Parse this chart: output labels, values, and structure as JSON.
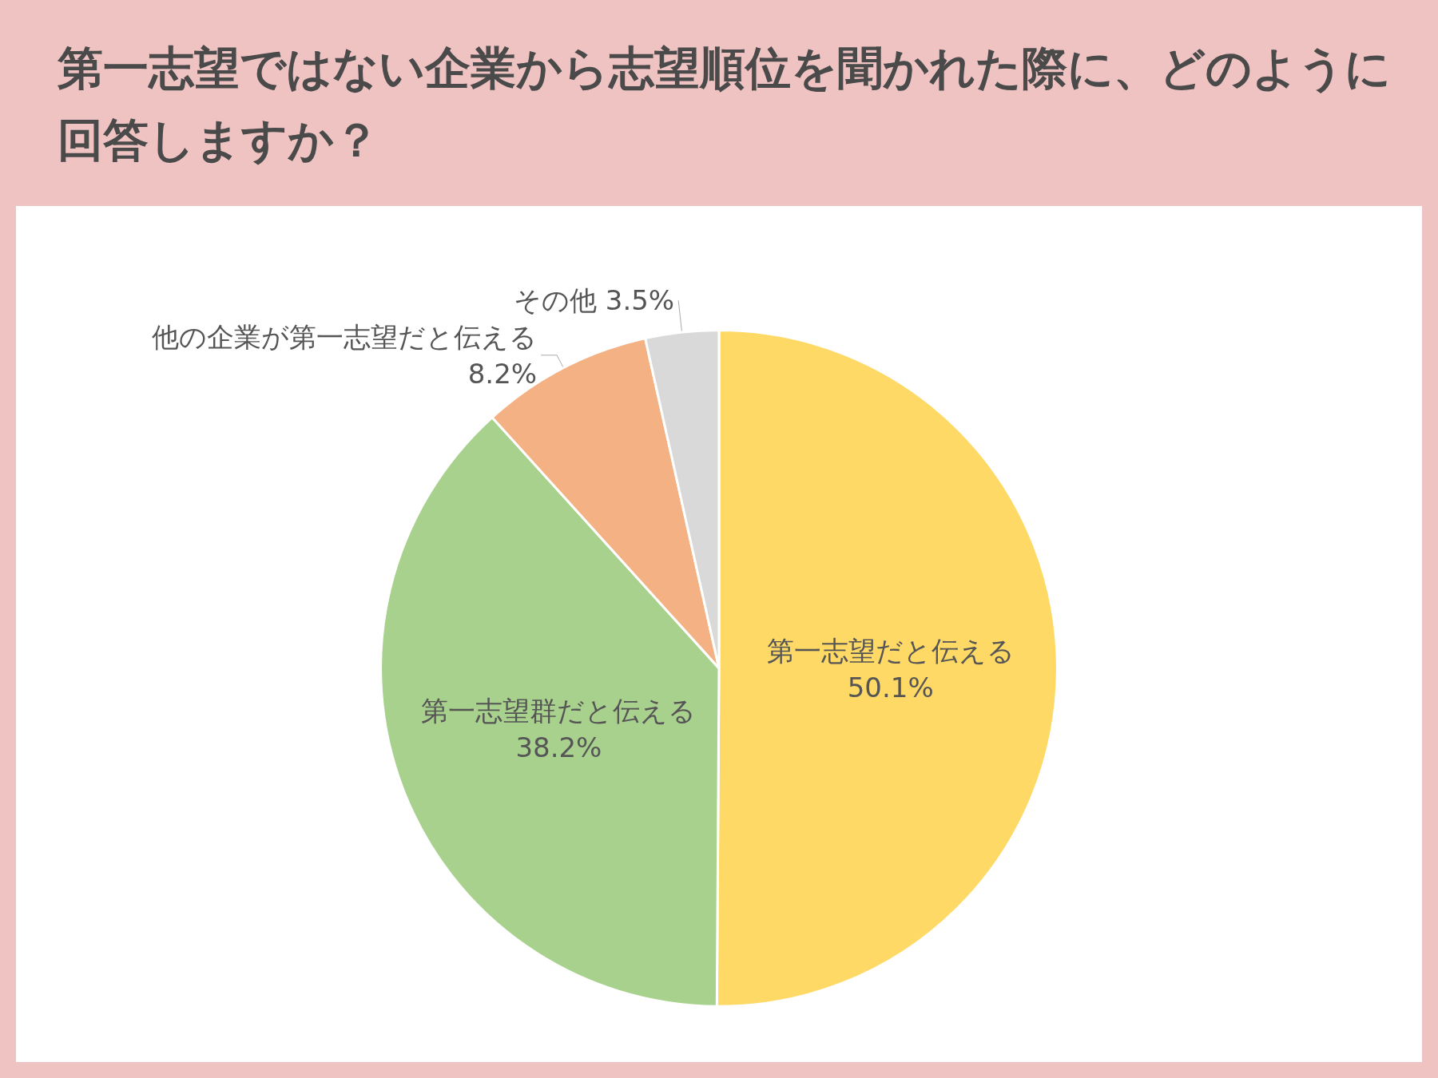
{
  "chart_data": {
    "type": "pie",
    "title": "第一志望ではない企業から志望順位を聞かれた際に、どのように回答しますか？",
    "categories": [
      "第一志望だと伝える",
      "第一志望群だと伝える",
      "他の企業が第一志望だと伝える",
      "その他"
    ],
    "values": [
      50.1,
      38.2,
      8.2,
      3.5
    ],
    "value_labels": [
      "50.1%",
      "38.2%",
      "8.2%",
      "3.5%"
    ],
    "colors": [
      "#fed966",
      "#a9d18e",
      "#f4b183",
      "#d9d9d9"
    ]
  }
}
